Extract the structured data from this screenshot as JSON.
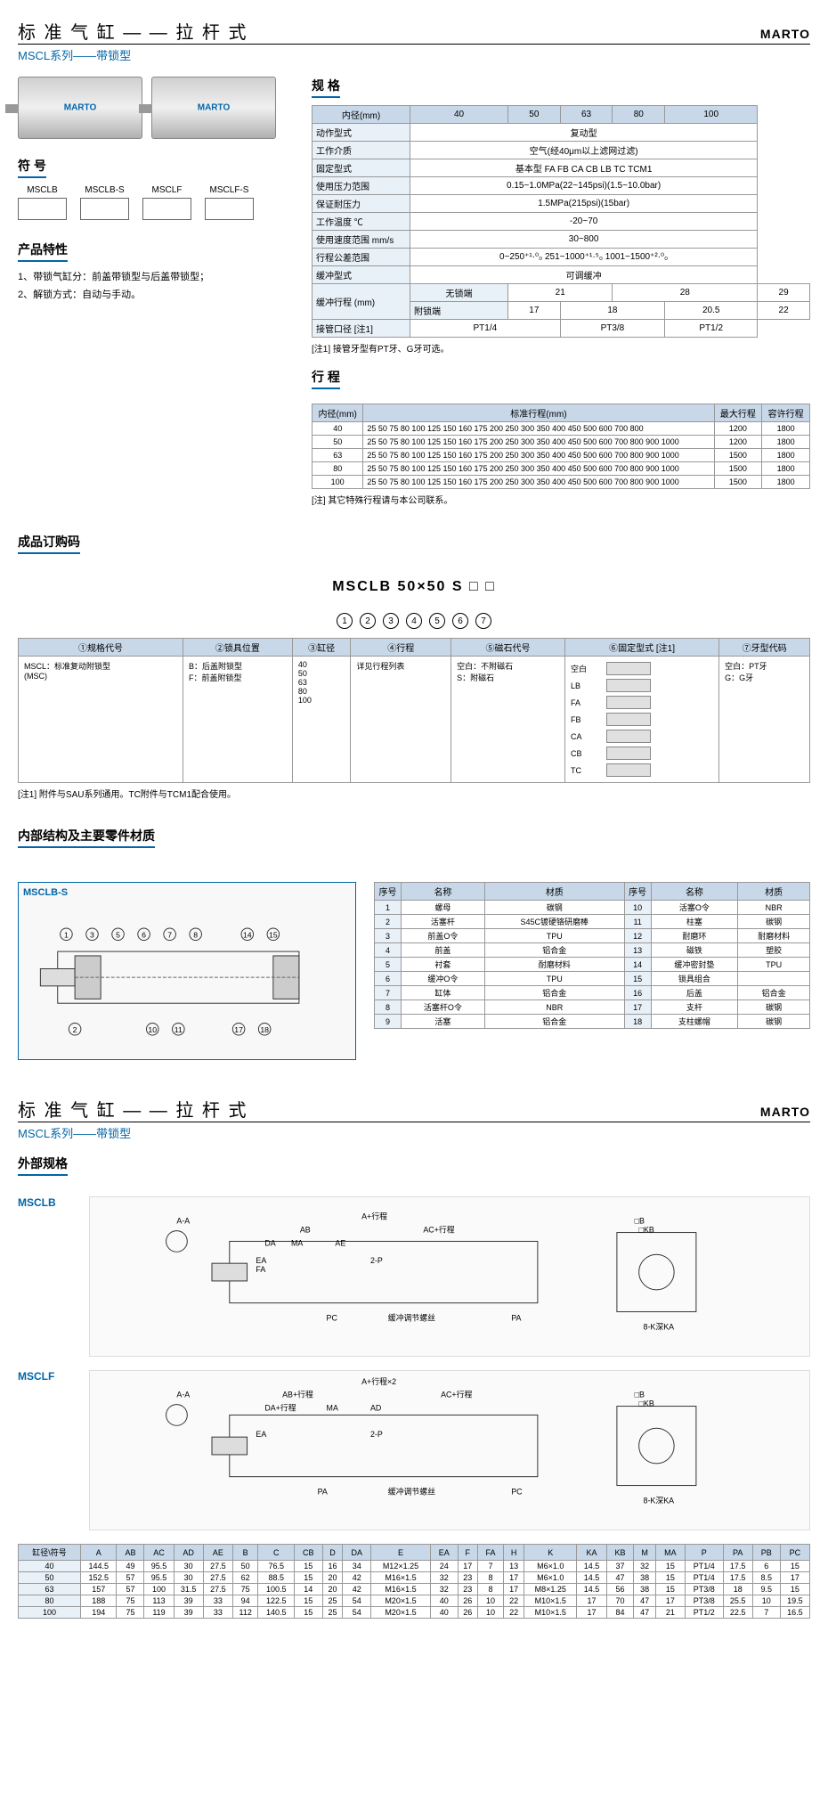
{
  "header": {
    "title": "标 准 气 缸 — — 拉 杆 式",
    "brand": "MARTO",
    "subtitle": "MSCL系列——带锁型"
  },
  "productLabel": "MARTO",
  "symbolsTitle": "符 号",
  "symbols": [
    "MSCLB",
    "MSCLB-S",
    "MSCLF",
    "MSCLF-S"
  ],
  "featuresTitle": "产品特性",
  "features": [
    "1、带锁气缸分：前盖带锁型与后盖带锁型；",
    "2、解锁方式：自动与手动。"
  ],
  "specTitle": "规 格",
  "specTable": {
    "headers": [
      "内径(mm)",
      "40",
      "50",
      "63",
      "80",
      "100"
    ],
    "rows": [
      {
        "label": "动作型式",
        "value": "复动型",
        "colspan": 5
      },
      {
        "label": "工作介质",
        "value": "空气(经40μm以上滤网过滤)",
        "colspan": 5
      },
      {
        "label": "固定型式",
        "value": "基本型 FA FB CA CB LB TC TCM1",
        "colspan": 5
      },
      {
        "label": "使用压力范围",
        "value": "0.15~1.0MPa(22~145psi)(1.5~10.0bar)",
        "colspan": 5
      },
      {
        "label": "保证耐压力",
        "value": "1.5MPa(215psi)(15bar)",
        "colspan": 5
      },
      {
        "label": "工作温度 ℃",
        "value": "-20~70",
        "colspan": 5
      },
      {
        "label": "使用速度范围 mm/s",
        "value": "30~800",
        "colspan": 5
      },
      {
        "label": "行程公差范围",
        "value": "0~250⁺¹·⁰₀  251~1000⁺¹·⁵₀  1001~1500⁺²·⁰₀",
        "colspan": 5
      },
      {
        "label": "缓冲型式",
        "value": "可调缓冲",
        "colspan": 5
      }
    ],
    "bufferRows": [
      {
        "label": "缓冲行程 (mm)",
        "sublabel": "无锁端",
        "values": [
          "21",
          "21",
          "28",
          "28",
          "29"
        ]
      },
      {
        "label": "",
        "sublabel": "附锁端",
        "values": [
          "17",
          "18",
          "18",
          "20.5",
          "22"
        ]
      }
    ],
    "portRow": {
      "label": "接管口径 [注1]",
      "values": [
        "PT1/4",
        "PT1/4",
        "PT3/8",
        "PT3/8",
        "PT1/2"
      ]
    }
  },
  "specNote": "[注1] 接管牙型有PT牙、G牙可选。",
  "strokeTitle": "行 程",
  "strokeTable": {
    "headers": [
      "内径(mm)",
      "标准行程(mm)",
      "最大行程",
      "容许行程"
    ],
    "rows": [
      {
        "bore": "40",
        "strokes": "25 50 75 80 100 125 150 160 175 200 250 300 350 400 450 500 600 700 800",
        "max": "1200",
        "allow": "1800"
      },
      {
        "bore": "50",
        "strokes": "25 50 75 80 100 125 150 160 175 200 250 300 350 400 450 500 600 700 800 900 1000",
        "max": "1200",
        "allow": "1800"
      },
      {
        "bore": "63",
        "strokes": "25 50 75 80 100 125 150 160 175 200 250 300 350 400 450 500 600 700 800 900 1000",
        "max": "1500",
        "allow": "1800"
      },
      {
        "bore": "80",
        "strokes": "25 50 75 80 100 125 150 160 175 200 250 300 350 400 450 500 600 700 800 900 1000",
        "max": "1500",
        "allow": "1800"
      },
      {
        "bore": "100",
        "strokes": "25 50 75 80 100 125 150 160 175 200 250 300 350 400 450 500 600 700 800 900 1000",
        "max": "1500",
        "allow": "1800"
      }
    ]
  },
  "strokeNote": "[注] 其它特殊行程请与本公司联系。",
  "orderTitle": "成品订购码",
  "orderCode": "MSCLB 50×50   S □ □",
  "orderMarkers": [
    "1",
    "2",
    "3",
    "4",
    "5",
    "6",
    "7"
  ],
  "orderTable": {
    "headers": [
      "①规格代号",
      "②锁具位置",
      "③缸径",
      "④行程",
      "⑤磁石代号",
      "⑥固定型式 [注1]",
      "⑦牙型代码"
    ],
    "col1": "MSCL：标准复动附锁型\n(MSC)",
    "col2": "B：后盖附锁型\nF：前盖附锁型",
    "col3": "40\n50\n63\n80\n100",
    "col4": "详见行程列表",
    "col5": "空白：不附磁石\nS：附磁石",
    "col6rows": [
      "空白",
      "LB",
      "FA",
      "FB",
      "CA",
      "CB",
      "TC"
    ],
    "col7": "空白：PT牙\nG：G牙"
  },
  "orderNote": "[注1] 附件与SAU系列通用。TC附件与TCM1配合使用。",
  "partsTitle": "内部结构及主要零件材质",
  "partsDiagramLabel": "MSCLB-S",
  "partsTable": {
    "headers": [
      "序号",
      "名称",
      "材质",
      "序号",
      "名称",
      "材质"
    ],
    "rows": [
      [
        "1",
        "螺母",
        "碳钢",
        "10",
        "活塞O令",
        "NBR"
      ],
      [
        "2",
        "活塞杆",
        "S45C镀硬铬研磨棒",
        "11",
        "柱塞",
        "碳钢"
      ],
      [
        "3",
        "前盖O令",
        "TPU",
        "12",
        "耐磨环",
        "耐磨材料"
      ],
      [
        "4",
        "前盖",
        "铝合金",
        "13",
        "磁铁",
        "塑胶"
      ],
      [
        "5",
        "衬套",
        "耐磨材料",
        "14",
        "缓冲密封垫",
        "TPU"
      ],
      [
        "6",
        "缓冲O令",
        "TPU",
        "15",
        "锁具组合",
        ""
      ],
      [
        "7",
        "缸体",
        "铝合金",
        "16",
        "后盖",
        "铝合金"
      ],
      [
        "8",
        "活塞杆O令",
        "NBR",
        "17",
        "支杆",
        "碳钢"
      ],
      [
        "9",
        "活塞",
        "铝合金",
        "18",
        "支柱螺帽",
        "碳钢"
      ]
    ]
  },
  "header2": {
    "title": "标 准 气 缸 — — 拉 杆 式",
    "brand": "MARTO",
    "subtitle": "MSCL系列——带锁型"
  },
  "extSpecTitle": "外部规格",
  "extModels": [
    "MSCLB",
    "MSCLF"
  ],
  "dimTable": {
    "headers": [
      "缸径\\符号",
      "A",
      "AB",
      "AC",
      "AD",
      "AE",
      "B",
      "C",
      "CB",
      "D",
      "DA",
      "E",
      "EA",
      "F",
      "FA",
      "H",
      "K",
      "KA",
      "KB",
      "M",
      "MA",
      "P",
      "PA",
      "PB",
      "PC"
    ],
    "rows": [
      [
        "40",
        "144.5",
        "49",
        "95.5",
        "30",
        "27.5",
        "50",
        "76.5",
        "15",
        "16",
        "34",
        "M12×1.25",
        "24",
        "17",
        "7",
        "13",
        "M6×1.0",
        "14.5",
        "37",
        "32",
        "15",
        "PT1/4",
        "17.5",
        "6",
        "15"
      ],
      [
        "50",
        "152.5",
        "57",
        "95.5",
        "30",
        "27.5",
        "62",
        "88.5",
        "15",
        "20",
        "42",
        "M16×1.5",
        "32",
        "23",
        "8",
        "17",
        "M6×1.0",
        "14.5",
        "47",
        "38",
        "15",
        "PT1/4",
        "17.5",
        "8.5",
        "17"
      ],
      [
        "63",
        "157",
        "57",
        "100",
        "31.5",
        "27.5",
        "75",
        "100.5",
        "14",
        "20",
        "42",
        "M16×1.5",
        "32",
        "23",
        "8",
        "17",
        "M8×1.25",
        "14.5",
        "56",
        "38",
        "15",
        "PT3/8",
        "18",
        "9.5",
        "15"
      ],
      [
        "80",
        "188",
        "75",
        "113",
        "39",
        "33",
        "94",
        "122.5",
        "15",
        "25",
        "54",
        "M20×1.5",
        "40",
        "26",
        "10",
        "22",
        "M10×1.5",
        "17",
        "70",
        "47",
        "17",
        "PT3/8",
        "25.5",
        "10",
        "19.5"
      ],
      [
        "100",
        "194",
        "75",
        "119",
        "39",
        "33",
        "112",
        "140.5",
        "15",
        "25",
        "54",
        "M20×1.5",
        "40",
        "26",
        "10",
        "22",
        "M10×1.5",
        "17",
        "84",
        "47",
        "21",
        "PT1/2",
        "22.5",
        "7",
        "16.5"
      ]
    ]
  }
}
